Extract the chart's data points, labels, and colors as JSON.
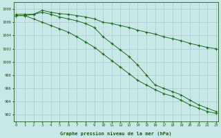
{
  "line1": [
    1007.2,
    1007.2,
    1007.2,
    1007.8,
    1007.5,
    1007.3,
    1007.2,
    1007.0,
    1006.8,
    1006.5,
    1006.0,
    1005.8,
    1005.5,
    1005.2,
    1004.8,
    1004.5,
    1004.2,
    1003.8,
    1003.5,
    1003.2,
    1002.8,
    1002.5,
    1002.2,
    1002.0
  ],
  "line2": [
    1007.0,
    1007.0,
    1007.2,
    1007.5,
    1007.2,
    1006.8,
    1006.5,
    1006.2,
    1005.8,
    1005.2,
    1003.8,
    1002.8,
    1001.8,
    1000.8,
    999.5,
    998.0,
    996.5,
    996.0,
    995.5,
    995.0,
    994.2,
    993.5,
    993.0,
    992.5
  ],
  "line3": [
    1007.0,
    1007.0,
    1006.5,
    1006.0,
    1005.5,
    1005.0,
    1004.5,
    1003.8,
    1003.0,
    1002.2,
    1001.2,
    1000.2,
    999.2,
    998.2,
    997.2,
    996.5,
    995.8,
    995.2,
    994.8,
    994.2,
    993.5,
    993.0,
    992.5,
    992.2
  ],
  "x": [
    0,
    1,
    2,
    3,
    4,
    5,
    6,
    7,
    8,
    9,
    10,
    11,
    12,
    13,
    14,
    15,
    16,
    17,
    18,
    19,
    20,
    21,
    22,
    23
  ],
  "ylim": [
    991.0,
    1009.0
  ],
  "yticks": [
    992,
    994,
    996,
    998,
    1000,
    1002,
    1004,
    1006,
    1008
  ],
  "xticks": [
    0,
    1,
    2,
    3,
    4,
    5,
    6,
    7,
    8,
    9,
    10,
    11,
    12,
    13,
    14,
    15,
    16,
    17,
    18,
    19,
    20,
    21,
    22,
    23
  ],
  "xlabel": "Graphe pression niveau de la mer (hPa)",
  "line_color": "#1a6b1a",
  "bg_color": "#c8e8e8",
  "grid_color": "#aacaca",
  "tick_color": "#1a5a1a",
  "label_color": "#1a5a1a"
}
